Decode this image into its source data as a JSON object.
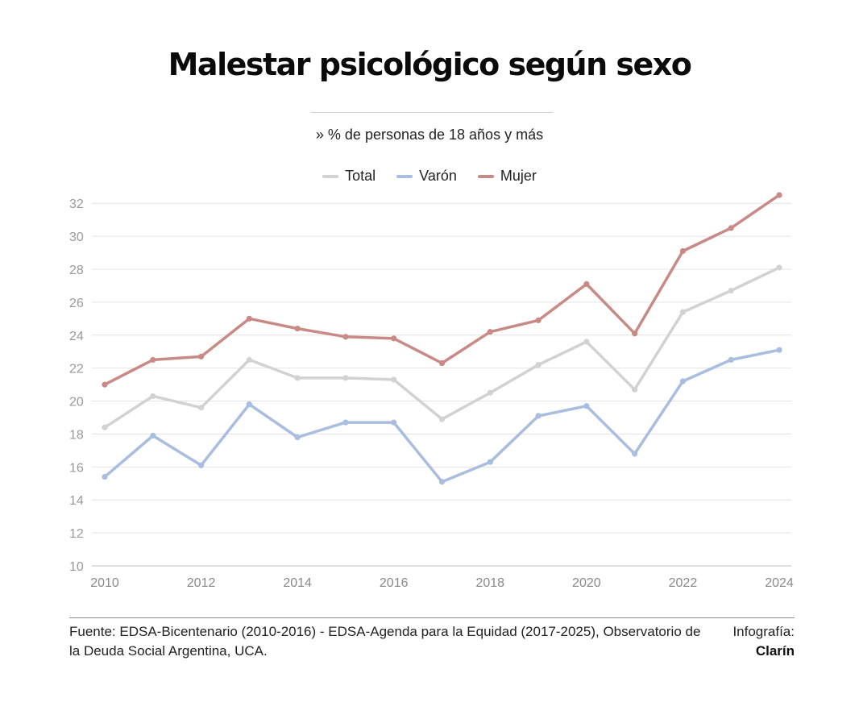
{
  "chart_data": {
    "type": "line",
    "title": "Malestar psicológico según sexo",
    "subtitle": "» % de personas de 18 años y más",
    "x": [
      2010,
      2011,
      2012,
      2013,
      2014,
      2015,
      2016,
      2017,
      2018,
      2019,
      2020,
      2021,
      2022,
      2023,
      2024
    ],
    "x_ticks": [
      "2010",
      "2012",
      "2014",
      "2016",
      "2018",
      "2020",
      "2022",
      "2024"
    ],
    "y_ticks": [
      "10",
      "12",
      "14",
      "16",
      "18",
      "20",
      "22",
      "24",
      "26",
      "28",
      "30",
      "32"
    ],
    "ylim": [
      10,
      32.5
    ],
    "xlim": [
      2010,
      2024
    ],
    "grid": true,
    "legend_position": "top-center",
    "series": [
      {
        "name": "Total",
        "color": "#d2d2d2",
        "values": [
          18.4,
          20.3,
          19.6,
          22.5,
          21.4,
          21.4,
          21.3,
          18.9,
          20.5,
          22.2,
          23.6,
          20.7,
          25.4,
          26.7,
          28.1
        ]
      },
      {
        "name": "Varón",
        "color": "#a9bde0",
        "values": [
          15.4,
          17.9,
          16.1,
          19.8,
          17.8,
          18.7,
          18.7,
          15.1,
          16.3,
          19.1,
          19.7,
          16.8,
          21.2,
          22.5,
          23.1
        ]
      },
      {
        "name": "Mujer",
        "color": "#c98a86",
        "values": [
          21.0,
          22.5,
          22.7,
          25.0,
          24.4,
          23.9,
          23.8,
          22.3,
          24.2,
          24.9,
          27.1,
          24.1,
          29.1,
          30.5,
          32.5
        ]
      }
    ]
  },
  "footer": {
    "source": "Fuente: EDSA-Bicentenario (2010-2016) - EDSA-Agenda para la Equidad (2017-2025), Observatorio de la Deuda Social Argentina, UCA.",
    "credit_label": "Infografía:",
    "credit_brand": "Clarín"
  }
}
